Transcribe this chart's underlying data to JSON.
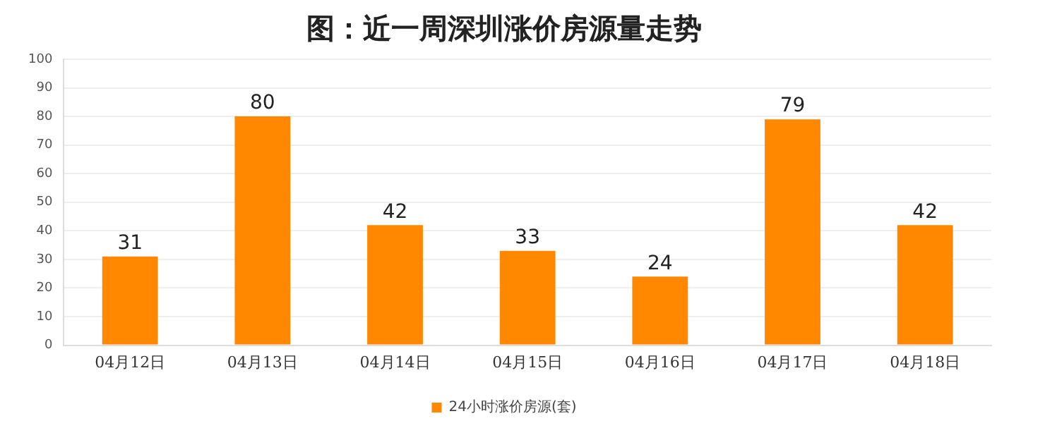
{
  "chart_data": {
    "type": "bar",
    "title": "图：近一周深圳涨价房源量走势",
    "categories": [
      "04月12日",
      "04月13日",
      "04月14日",
      "04月15日",
      "04月16日",
      "04月17日",
      "04月18日"
    ],
    "series": [
      {
        "name": "24小时涨价房源(套)",
        "color": "#ff8800",
        "values": [
          31,
          80,
          42,
          33,
          24,
          79,
          42
        ]
      }
    ],
    "ylim": [
      0,
      100
    ],
    "yticks": [
      0,
      10,
      20,
      30,
      40,
      50,
      60,
      70,
      80,
      90,
      100
    ],
    "grid": "y",
    "legend": "bottom",
    "data_labels": true
  }
}
